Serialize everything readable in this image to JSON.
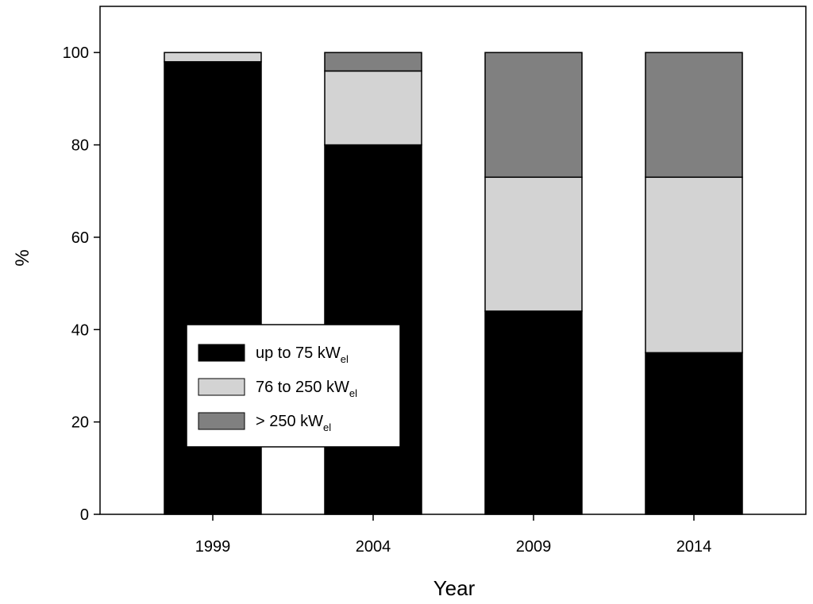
{
  "chart_data": {
    "type": "stacked_bar",
    "xlabel": "Year",
    "ylabel": "%",
    "categories": [
      "1999",
      "2004",
      "2009",
      "2014"
    ],
    "series": [
      {
        "name": "up to 75 kW",
        "subscript": "el",
        "color": "#000000",
        "values": [
          98,
          80,
          44,
          35
        ]
      },
      {
        "name": "76 to 250 kW",
        "subscript": "el",
        "color": "#d3d3d3",
        "values": [
          2,
          16,
          29,
          38
        ]
      },
      {
        "name": "> 250 kW",
        "subscript": "el",
        "color": "#808080",
        "values": [
          0,
          4,
          27,
          27
        ]
      }
    ],
    "ylim": [
      0,
      110
    ],
    "yticks": [
      0,
      20,
      40,
      60,
      80,
      100
    ],
    "grid": false,
    "legend": "lower left"
  }
}
